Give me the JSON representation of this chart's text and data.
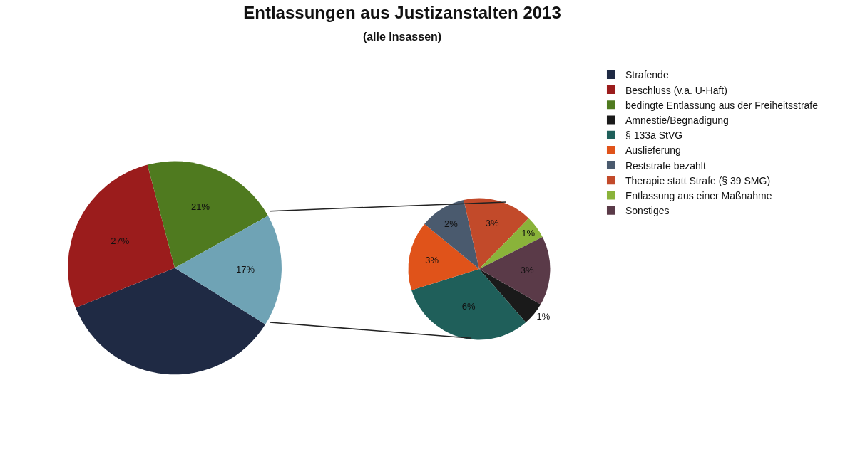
{
  "chart_data": [
    {
      "type": "pie",
      "title": "Entlassungen aus Justizanstalten 2013",
      "subtitle": "(alle Insassen)",
      "legend": "right",
      "categories": [
        "Strafende",
        "Beschluss (v.a. U-Haft)",
        "bedingte Entlassung aus der Freiheitsstrafe",
        null
      ],
      "values": [
        35,
        27,
        21,
        17
      ],
      "value_labels": [
        null,
        "27%",
        "21%",
        "17%"
      ],
      "colors": [
        "#1f2a44",
        "#9b1c1c",
        "#4f7a1f",
        "#6fa3b5"
      ]
    },
    {
      "type": "pie",
      "legend": "right",
      "categories": [
        "Amnestie/Begnadigung",
        "§ 133a StVG",
        "Auslieferung",
        "Reststrafe bezahlt",
        "Therapie statt Strafe (§ 39 SMG)",
        "Entlassung aus einer Maßnahme",
        "Sonstiges"
      ],
      "values": [
        1,
        6,
        3,
        2,
        3,
        1,
        3
      ],
      "value_labels": [
        "1%",
        "6%",
        "3%",
        "2%",
        "3%",
        "1%",
        "3%"
      ],
      "colors": [
        "#1a1a1a",
        "#1f5f5a",
        "#e0531a",
        "#4a5a6e",
        "#c24a2a",
        "#8ab33a",
        "#5a3a48"
      ]
    }
  ]
}
